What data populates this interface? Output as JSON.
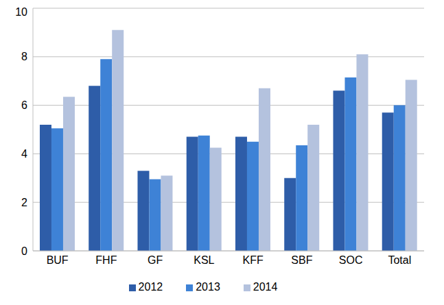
{
  "chart_data": {
    "type": "bar",
    "categories": [
      "BUF",
      "FHF",
      "GF",
      "KSL",
      "KFF",
      "SBF",
      "SOC",
      "Total"
    ],
    "series": [
      {
        "name": "2012",
        "color": "#2E5DA8",
        "values": [
          5.2,
          6.8,
          3.3,
          4.7,
          4.7,
          3.0,
          6.6,
          5.7
        ]
      },
      {
        "name": "2013",
        "color": "#3E82D6",
        "values": [
          5.05,
          7.9,
          2.95,
          4.75,
          4.5,
          4.35,
          7.15,
          6.0
        ]
      },
      {
        "name": "2014",
        "color": "#B4C2DE",
        "values": [
          6.35,
          9.1,
          3.1,
          4.25,
          6.7,
          5.2,
          8.1,
          7.05
        ]
      }
    ],
    "ylim": [
      0,
      10
    ],
    "yticks": [
      0,
      2,
      4,
      6,
      8,
      10
    ],
    "grid": true,
    "legend": "bottom"
  }
}
